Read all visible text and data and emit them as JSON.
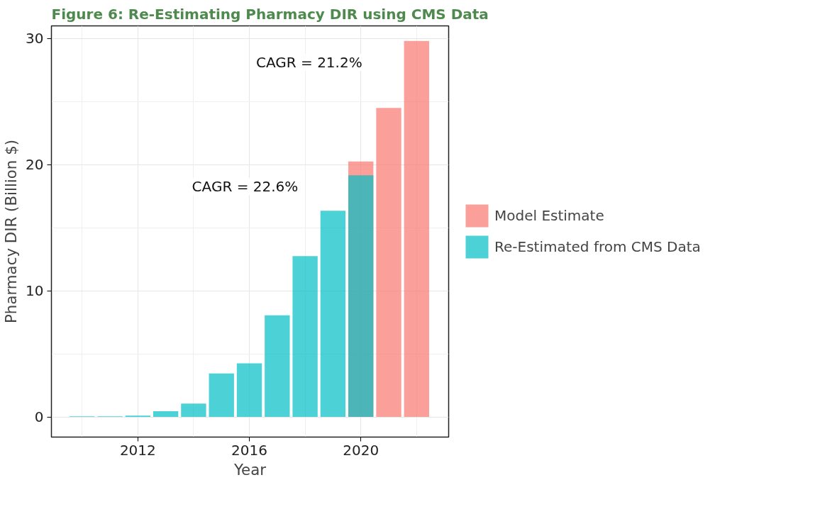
{
  "chart_data": {
    "type": "bar",
    "title": "Figure 6: Re-Estimating Pharmacy DIR using CMS Data",
    "xlabel": "Year",
    "ylabel": "Pharmacy DIR (Billion $)",
    "annotations": [
      "CAGR = 22.6%",
      "CAGR = 21.2%"
    ],
    "series": [
      {
        "name": "Model Estimate",
        "color": "#f8766d",
        "x": [
          2020,
          2021,
          2022
        ],
        "values": [
          20.25,
          24.5,
          29.8
        ]
      },
      {
        "name": "Re-Estimated from CMS Data",
        "color": "#00bfc4",
        "x": [
          2010,
          2011,
          2012,
          2013,
          2014,
          2015,
          2016,
          2017,
          2018,
          2019,
          2020
        ],
        "values": [
          0.05,
          0.05,
          0.1,
          0.45,
          1.05,
          3.45,
          4.25,
          8.05,
          12.75,
          16.35,
          19.15
        ]
      }
    ],
    "xlim": [
      2008.9,
      2023.15
    ],
    "xticks": [
      2012,
      2016,
      2020
    ],
    "ylim": [
      -1.6,
      31
    ],
    "yticks": [
      0,
      10,
      20,
      30
    ],
    "grid": true,
    "legend": "right"
  }
}
